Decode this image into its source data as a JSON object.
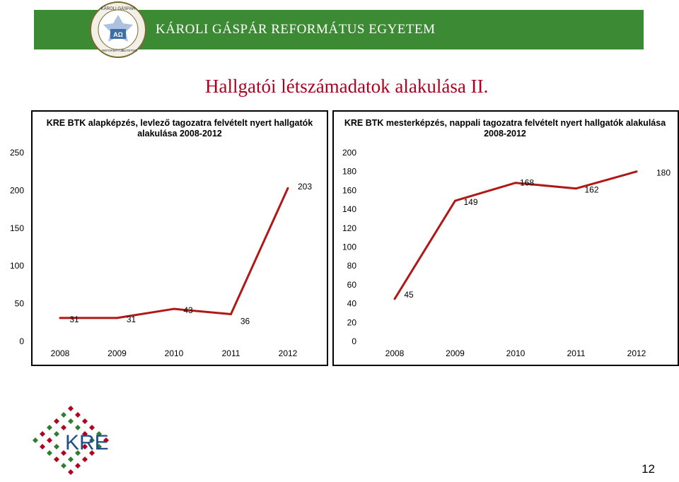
{
  "header": {
    "university_name": "KÁROLI GÁSPÁR REFORMÁTUS EGYETEM",
    "seal_text_top": "KÁROLI GÁSPÁR",
    "seal_text_left": "REFORMÁTUS",
    "seal_text_right": "EGYETEM",
    "banner_color": "#3c8a33"
  },
  "slide": {
    "title": "Hallgatói létszámadatok alakulása II.",
    "title_color": "#b00020",
    "page_number": "12"
  },
  "footer_logo": {
    "text": "KRE",
    "colors": [
      "#b00020",
      "#2e7d32"
    ]
  },
  "chart_data": [
    {
      "type": "line",
      "title": "KRE BTK alapképzés, levlező tagozatra felvételt nyert hallgatók alakulása 2008-2012",
      "categories": [
        "2008",
        "2009",
        "2010",
        "2011",
        "2012"
      ],
      "series": [
        {
          "values": [
            31,
            31,
            43,
            36,
            203
          ],
          "color": "#b01818"
        }
      ],
      "data_labels": [
        "31",
        "31",
        "43",
        "36",
        "203"
      ],
      "ylim": [
        0,
        250
      ],
      "yticks": [
        "0",
        "50",
        "100",
        "150",
        "200",
        "250"
      ],
      "grid": false,
      "legend": false
    },
    {
      "type": "line",
      "title": "KRE BTK mesterképzés, nappali tagozatra felvételt nyert hallgatók alakulása 2008-2012",
      "categories": [
        "2008",
        "2009",
        "2010",
        "2011",
        "2012"
      ],
      "series": [
        {
          "values": [
            45,
            149,
            168,
            162,
            180
          ],
          "color": "#b01818"
        }
      ],
      "data_labels": [
        "45",
        "149",
        "168",
        "162",
        "180"
      ],
      "ylim": [
        0,
        200
      ],
      "yticks": [
        "0",
        "20",
        "40",
        "60",
        "80",
        "100",
        "120",
        "140",
        "160",
        "180",
        "200"
      ],
      "grid": false,
      "legend": false
    }
  ]
}
